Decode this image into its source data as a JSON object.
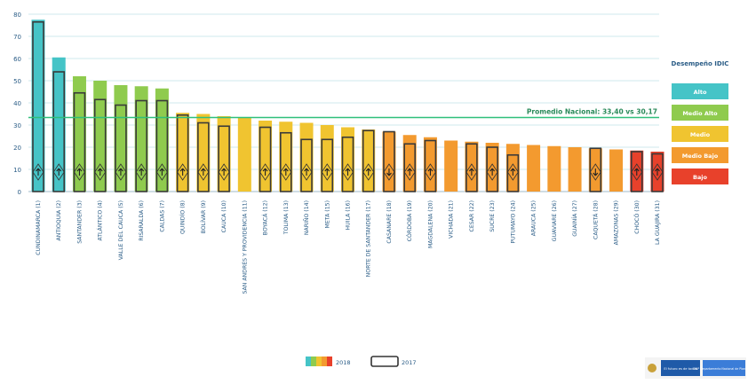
{
  "chart_data": {
    "type": "bar",
    "ylim": [
      0,
      80
    ],
    "yticks": [
      0,
      10,
      20,
      30,
      40,
      50,
      60,
      70,
      80
    ],
    "grid": true,
    "average_line": {
      "label": "Promedio Nacional: 33,40 vs 30,17",
      "value": 33.4
    },
    "legend_title": "Desempeño IDIC",
    "performance_levels": [
      {
        "key": "alto",
        "label": "Alto",
        "color": "#45c4c7"
      },
      {
        "key": "medio_alto",
        "label": "Medio Alto",
        "color": "#8fcb4e"
      },
      {
        "key": "medio",
        "label": "Medio",
        "color": "#f0c430"
      },
      {
        "key": "medio_bajo",
        "label": "Medio Bajo",
        "color": "#f39a2f"
      },
      {
        "key": "bajo",
        "label": "Bajo",
        "color": "#e8412b"
      }
    ],
    "series": [
      {
        "name": "2018"
      },
      {
        "name": "2017"
      }
    ],
    "categories": [
      "CUNDINAMARCA (1)",
      "ANTIOQUIA (2)",
      "SANTANDER (3)",
      "ATLÁNTICO (4)",
      "VALLE DEL CAUCA (5)",
      "RISARALDA (6)",
      "CALDAS (7)",
      "QUINDÍO (8)",
      "BOLÍVAR (9)",
      "CAUCA (10)",
      "SAN ANDRÉS Y PROVIDENCIA (11)",
      "BOYACÁ (12)",
      "TOLIMA (13)",
      "NARIÑO (14)",
      "META (15)",
      "HUILA (16)",
      "NORTE DE SANTANDER (17)",
      "CASANARE (18)",
      "CÓRDOBA (19)",
      "MAGDALENA (20)",
      "VICHADA (21)",
      "CESAR (22)",
      "SUCRE (23)",
      "PUTUMAYO (24)",
      "ARAUCA (25)",
      "GUAVIARE (26)",
      "GUAINÍA (27)",
      "CAQUETÁ (28)",
      "AMAZONAS (29)",
      "CHOCÓ (30)",
      "LA GUAJIRA (31)"
    ],
    "values_2018": [
      77.5,
      60.5,
      52.0,
      50.0,
      48.0,
      47.5,
      46.5,
      35.5,
      35.0,
      34.0,
      33.5,
      32.0,
      31.5,
      31.0,
      30.0,
      29.0,
      28.0,
      27.0,
      25.5,
      24.5,
      23.0,
      22.5,
      22.0,
      21.5,
      21.0,
      20.5,
      20.0,
      19.5,
      19.0,
      18.5,
      18.0
    ],
    "values_2017": [
      76.5,
      54.0,
      44.5,
      41.5,
      39.0,
      41.0,
      41.0,
      34.5,
      31.0,
      29.5,
      null,
      29.0,
      26.5,
      23.5,
      23.5,
      24.5,
      27.5,
      27.0,
      21.5,
      23.0,
      null,
      21.5,
      20.0,
      16.5,
      null,
      null,
      null,
      19.5,
      null,
      18.0,
      17.0
    ],
    "levels": [
      "alto",
      "alto",
      "medio_alto",
      "medio_alto",
      "medio_alto",
      "medio_alto",
      "medio_alto",
      "medio",
      "medio",
      "medio",
      "medio",
      "medio",
      "medio",
      "medio",
      "medio",
      "medio",
      "medio",
      "medio_bajo",
      "medio_bajo",
      "medio_bajo",
      "medio_bajo",
      "medio_bajo",
      "medio_bajo",
      "medio_bajo",
      "medio_bajo",
      "medio_bajo",
      "medio_bajo",
      "medio_bajo",
      "medio_bajo",
      "bajo",
      "bajo"
    ],
    "trend_icons": [
      "up",
      "up",
      "up",
      "up",
      "up",
      "up",
      "up",
      "up",
      "up",
      "up",
      null,
      "up",
      "up",
      "up",
      "up",
      "up",
      "up",
      "down",
      "up",
      "up",
      null,
      "up",
      "up",
      "up",
      null,
      null,
      null,
      "down",
      null,
      "up",
      "up"
    ]
  },
  "footer": {
    "legend_2018": "2018",
    "legend_2017": "2017",
    "logo_text": "El futuro es de todos",
    "logo_sub": "DNP Departamento Nacional de Planeación"
  }
}
